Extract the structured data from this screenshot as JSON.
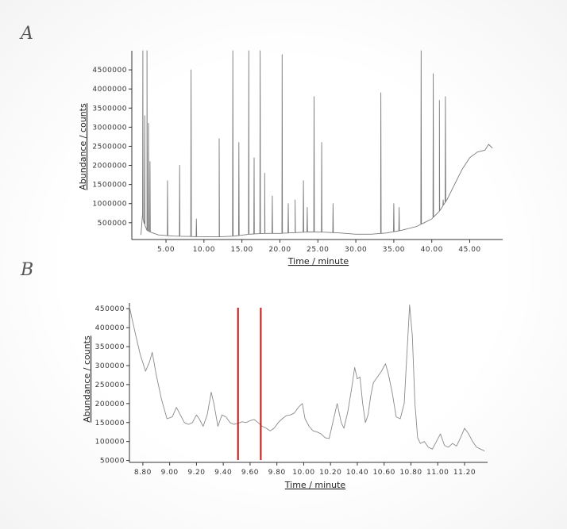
{
  "panels": [
    {
      "label": "A"
    },
    {
      "label": "B"
    }
  ],
  "chart_data": [
    {
      "type": "line",
      "panel": "A",
      "xlabel": "Time / minute",
      "ylabel": "Abundance / counts",
      "xlim": [
        0.5,
        48.5
      ],
      "ylim": [
        60000,
        5000000
      ],
      "x_ticks": [
        "5.00",
        "10.00",
        "15.00",
        "20.00",
        "25.00",
        "30.00",
        "35.00",
        "40.00",
        "45.00"
      ],
      "y_ticks": [
        "500000",
        "1000000",
        "1500000",
        "2000000",
        "2500000",
        "3000000",
        "3500000",
        "4000000",
        "4500000"
      ],
      "color": "#7a7a7a",
      "series": [
        {
          "x": [
            1.7,
            1.9,
            2.1,
            2.5,
            3.0,
            4.0,
            6.0,
            8.0,
            10.0,
            12.0,
            14.0,
            16.0,
            18.0,
            20.0,
            22.0,
            24.0,
            26.0,
            28.0,
            30.0,
            32.0,
            34.0,
            36.0,
            37.0,
            38.0,
            39.0,
            40.0,
            41.0,
            42.0,
            43.0,
            44.0,
            45.0,
            46.0,
            47.0,
            47.5,
            48.0
          ],
          "y": [
            180000,
            700000,
            500000,
            300000,
            250000,
            180000,
            150000,
            140000,
            130000,
            130000,
            150000,
            200000,
            220000,
            220000,
            240000,
            260000,
            250000,
            230000,
            200000,
            200000,
            230000,
            300000,
            350000,
            400000,
            500000,
            600000,
            800000,
            1100000,
            1500000,
            1900000,
            2200000,
            2350000,
            2400000,
            2550000,
            2450000
          ],
          "peaks": [
            [
              1.95,
              5000000
            ],
            [
              2.2,
              3300000
            ],
            [
              2.5,
              5000000
            ],
            [
              2.7,
              3100000
            ],
            [
              2.9,
              2100000
            ],
            [
              5.2,
              1600000
            ],
            [
              6.8,
              2000000
            ],
            [
              8.3,
              4500000
            ],
            [
              9.0,
              600000
            ],
            [
              12.0,
              2700000
            ],
            [
              13.8,
              5000000
            ],
            [
              14.6,
              2600000
            ],
            [
              15.9,
              5000000
            ],
            [
              16.6,
              2200000
            ],
            [
              17.4,
              5000000
            ],
            [
              18.0,
              1800000
            ],
            [
              19.0,
              1200000
            ],
            [
              20.3,
              4900000
            ],
            [
              21.1,
              1000000
            ],
            [
              22.0,
              1100000
            ],
            [
              23.1,
              1600000
            ],
            [
              23.6,
              900000
            ],
            [
              24.5,
              3800000
            ],
            [
              25.5,
              2600000
            ],
            [
              27.0,
              1000000
            ],
            [
              33.3,
              3900000
            ],
            [
              35.0,
              1000000
            ],
            [
              35.7,
              900000
            ],
            [
              38.6,
              5000000
            ],
            [
              40.2,
              4400000
            ],
            [
              41.0,
              3700000
            ],
            [
              41.5,
              1100000
            ],
            [
              41.8,
              3800000
            ]
          ]
        }
      ]
    },
    {
      "type": "line",
      "panel": "B",
      "xlabel": "Time / minute",
      "ylabel": "Abundance / counts",
      "xlim": [
        8.7,
        11.36
      ],
      "ylim": [
        45000,
        465000
      ],
      "x_ticks": [
        "8.80",
        "9.00",
        "9.20",
        "9.40",
        "9.60",
        "9.80",
        "10.00",
        "10.20",
        "10.40",
        "10.60",
        "10.80",
        "11.00",
        "11.20"
      ],
      "y_ticks": [
        "50000",
        "100000",
        "150000",
        "200000",
        "250000",
        "300000",
        "350000",
        "400000",
        "450000"
      ],
      "color": "#8a8a8a",
      "vlines": {
        "x": [
          9.51,
          9.68
        ],
        "color": "#cc1111"
      },
      "series": [
        {
          "x": [
            8.7,
            8.74,
            8.78,
            8.82,
            8.85,
            8.87,
            8.9,
            8.94,
            8.98,
            9.02,
            9.05,
            9.08,
            9.11,
            9.14,
            9.17,
            9.2,
            9.22,
            9.25,
            9.28,
            9.31,
            9.33,
            9.36,
            9.39,
            9.42,
            9.45,
            9.48,
            9.51,
            9.54,
            9.57,
            9.6,
            9.63,
            9.66,
            9.69,
            9.72,
            9.75,
            9.78,
            9.81,
            9.84,
            9.87,
            9.9,
            9.93,
            9.96,
            9.99,
            10.01,
            10.04,
            10.07,
            10.1,
            10.13,
            10.16,
            10.19,
            10.22,
            10.25,
            10.28,
            10.3,
            10.33,
            10.36,
            10.38,
            10.4,
            10.42,
            10.44,
            10.46,
            10.48,
            10.5,
            10.52,
            10.55,
            10.58,
            10.61,
            10.63,
            10.66,
            10.69,
            10.72,
            10.75,
            10.77,
            10.79,
            10.81,
            10.83,
            10.85,
            10.87,
            10.9,
            10.93,
            10.96,
            10.99,
            11.02,
            11.05,
            11.08,
            11.11,
            11.14,
            11.17,
            11.2,
            11.23,
            11.26,
            11.29,
            11.32,
            11.35
          ],
          "y": [
            455000,
            390000,
            330000,
            285000,
            310000,
            335000,
            275000,
            210000,
            160000,
            165000,
            190000,
            170000,
            150000,
            145000,
            150000,
            170000,
            160000,
            140000,
            170000,
            230000,
            200000,
            140000,
            170000,
            165000,
            150000,
            145000,
            148000,
            152000,
            150000,
            155000,
            158000,
            150000,
            140000,
            135000,
            128000,
            135000,
            150000,
            160000,
            168000,
            170000,
            175000,
            190000,
            200000,
            160000,
            140000,
            128000,
            125000,
            120000,
            110000,
            108000,
            155000,
            200000,
            150000,
            135000,
            180000,
            245000,
            295000,
            265000,
            270000,
            200000,
            150000,
            170000,
            220000,
            255000,
            270000,
            285000,
            305000,
            280000,
            230000,
            165000,
            160000,
            200000,
            330000,
            460000,
            380000,
            200000,
            110000,
            95000,
            100000,
            85000,
            80000,
            100000,
            120000,
            90000,
            85000,
            95000,
            88000,
            110000,
            135000,
            120000,
            100000,
            85000,
            80000,
            75000
          ]
        }
      ]
    }
  ]
}
